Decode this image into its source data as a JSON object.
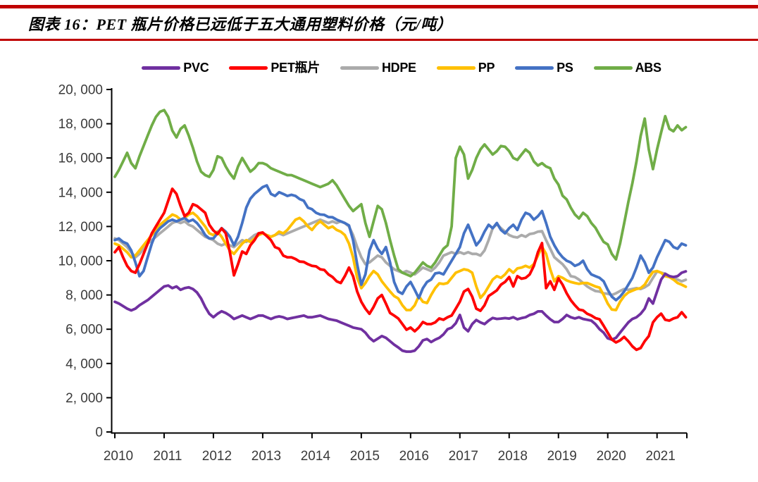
{
  "header": {
    "title": "图表 16：PET 瓶片价格已远低于五大通用塑料价格（元/吨）"
  },
  "colors": {
    "accent_rule": "#C00000",
    "axis": "#000000",
    "tick_label": "#3a3a3a",
    "background": "#ffffff"
  },
  "chart_data": {
    "type": "line",
    "title": "PET 瓶片价格已远低于五大通用塑料价格",
    "unit": "元/吨",
    "xlabel": "",
    "ylabel": "元/吨",
    "grid": false,
    "legend_position": "top",
    "x_start": "2010-01",
    "x_end": "2021-08",
    "x_frequency": "monthly",
    "x_tick_labels": [
      "2010",
      "2011",
      "2012",
      "2013",
      "2014",
      "2015",
      "2016",
      "2017",
      "2018",
      "2019",
      "2020",
      "2021"
    ],
    "ylim": [
      0,
      20000
    ],
    "y_tick_step": 2000,
    "y_tick_labels": [
      "0",
      "2, 000",
      "4, 000",
      "6, 000",
      "8, 000",
      "10, 000",
      "12, 000",
      "14, 000",
      "16, 000",
      "18, 000",
      "20, 000"
    ],
    "series": [
      {
        "name": "PVC",
        "color": "#7030A0",
        "values": [
          7600,
          7500,
          7350,
          7200,
          7100,
          7200,
          7400,
          7550,
          7700,
          7900,
          8100,
          8300,
          8500,
          8550,
          8400,
          8500,
          8300,
          8400,
          8450,
          8350,
          8150,
          7800,
          7300,
          6900,
          6700,
          6900,
          7050,
          6950,
          6800,
          6600,
          6700,
          6800,
          6700,
          6600,
          6700,
          6800,
          6800,
          6700,
          6600,
          6700,
          6750,
          6700,
          6600,
          6650,
          6700,
          6750,
          6800,
          6700,
          6700,
          6750,
          6800,
          6700,
          6600,
          6550,
          6500,
          6400,
          6300,
          6200,
          6100,
          6050,
          6000,
          5800,
          5500,
          5300,
          5450,
          5600,
          5500,
          5300,
          5100,
          4940,
          4750,
          4690,
          4690,
          4750,
          5000,
          5350,
          5430,
          5250,
          5390,
          5500,
          5700,
          6000,
          6090,
          6350,
          6830,
          6100,
          5880,
          6300,
          6540,
          6400,
          6300,
          6500,
          6660,
          6600,
          6620,
          6650,
          6620,
          6700,
          6580,
          6650,
          6700,
          6830,
          6900,
          7040,
          7040,
          6800,
          6580,
          6420,
          6420,
          6600,
          6830,
          6700,
          6630,
          6700,
          6600,
          6550,
          6500,
          6300,
          6000,
          5800,
          5470,
          5390,
          5500,
          5800,
          6100,
          6400,
          6600,
          6700,
          6900,
          7200,
          7800,
          7500,
          8200,
          8900,
          9240,
          9100,
          9050,
          9100,
          9300,
          9380
        ]
      },
      {
        "name": "PET瓶片",
        "color": "#FF0000",
        "values": [
          10500,
          10800,
          10200,
          9700,
          9400,
          9300,
          9800,
          10400,
          11000,
          11600,
          12000,
          12400,
          12800,
          13500,
          14200,
          13900,
          13200,
          12600,
          12800,
          13300,
          13200,
          13000,
          12800,
          12100,
          11770,
          11560,
          11890,
          11600,
          10500,
          9150,
          9800,
          10540,
          10400,
          10900,
          11200,
          11600,
          11650,
          11440,
          11200,
          10800,
          10700,
          10300,
          10200,
          10200,
          10100,
          9950,
          9930,
          9800,
          9700,
          9670,
          9500,
          9460,
          9200,
          9050,
          8800,
          8700,
          9100,
          9600,
          9100,
          8200,
          7600,
          7200,
          6900,
          7300,
          7800,
          8000,
          7500,
          6950,
          6800,
          6630,
          6300,
          5970,
          6100,
          5880,
          6100,
          6420,
          6300,
          6300,
          6400,
          6630,
          6550,
          6700,
          6800,
          7200,
          7610,
          8200,
          8350,
          7900,
          7200,
          7080,
          7400,
          7940,
          8100,
          8270,
          8600,
          8760,
          9050,
          8500,
          9100,
          8950,
          9000,
          9200,
          9700,
          10500,
          11030,
          8400,
          8800,
          8300,
          8970,
          8600,
          8100,
          7700,
          7400,
          7150,
          7100,
          6900,
          6800,
          6650,
          6580,
          6200,
          5800,
          5400,
          5230,
          5350,
          5550,
          5300,
          5000,
          4800,
          4900,
          5300,
          5600,
          6400,
          6700,
          6910,
          6550,
          6500,
          6630,
          6700,
          6990,
          6700
        ]
      },
      {
        "name": "HDPE",
        "color": "#ABABAB",
        "values": [
          11300,
          11200,
          11000,
          10800,
          10500,
          10200,
          10400,
          10700,
          11000,
          11200,
          11400,
          11600,
          11800,
          12000,
          12200,
          12300,
          12200,
          12300,
          12100,
          12000,
          11800,
          11600,
          11400,
          11300,
          11200,
          11000,
          10900,
          11000,
          10900,
          10800,
          11000,
          11200,
          11100,
          11300,
          11500,
          11600,
          11600,
          11500,
          11400,
          11500,
          11600,
          11500,
          11600,
          11700,
          11800,
          11900,
          12000,
          12100,
          12200,
          12300,
          12400,
          12300,
          12200,
          12300,
          12200,
          12300,
          12200,
          12000,
          11500,
          10800,
          10200,
          9800,
          9900,
          10100,
          10300,
          10200,
          9900,
          9700,
          9500,
          9400,
          9300,
          9400,
          9300,
          9200,
          9400,
          9600,
          9500,
          9400,
          9600,
          9900,
          10300,
          10400,
          10500,
          10400,
          10500,
          10400,
          10500,
          10400,
          10400,
          10300,
          10600,
          11200,
          11900,
          12140,
          11900,
          11700,
          11500,
          11400,
          11360,
          11500,
          11400,
          11560,
          11600,
          11700,
          11730,
          11200,
          10700,
          10200,
          10000,
          9800,
          9500,
          9100,
          9050,
          8900,
          8700,
          8500,
          8350,
          8230,
          8200,
          8100,
          8070,
          8000,
          8100,
          8230,
          8350,
          8300,
          8350,
          8400,
          8350,
          8450,
          8600,
          9000,
          9380,
          9300,
          9240,
          9100,
          9000,
          8900,
          8800,
          8890
        ]
      },
      {
        "name": "PP",
        "color": "#FFC000",
        "values": [
          11000,
          10900,
          10700,
          10500,
          10200,
          10300,
          10600,
          10900,
          11200,
          11500,
          11800,
          12100,
          12300,
          12500,
          12700,
          12600,
          12400,
          12500,
          12700,
          12800,
          12600,
          12300,
          12000,
          11600,
          11500,
          11700,
          11400,
          11000,
          10600,
          10400,
          10700,
          11000,
          11200,
          11100,
          11300,
          11500,
          11600,
          11500,
          11400,
          11500,
          11700,
          11600,
          11800,
          12100,
          12400,
          12500,
          12300,
          12000,
          11800,
          12100,
          12300,
          12100,
          11900,
          12000,
          11800,
          11700,
          11500,
          11000,
          10200,
          9000,
          8400,
          8700,
          9100,
          9400,
          9200,
          8800,
          8500,
          8200,
          7940,
          7800,
          7400,
          7120,
          7120,
          7400,
          7940,
          7600,
          7530,
          8000,
          8400,
          8680,
          8640,
          8700,
          9000,
          9300,
          9400,
          9500,
          9450,
          9300,
          8500,
          7830,
          8100,
          8500,
          8900,
          9100,
          9000,
          9200,
          9500,
          9300,
          9550,
          9600,
          9700,
          9600,
          9800,
          10300,
          10820,
          10400,
          9500,
          8800,
          9100,
          9000,
          8850,
          8760,
          8700,
          8650,
          8700,
          8700,
          8600,
          8500,
          8430,
          8000,
          7500,
          7150,
          7120,
          7600,
          7940,
          8150,
          8250,
          8350,
          8400,
          8600,
          9000,
          9350,
          9400,
          9300,
          9100,
          9050,
          8900,
          8700,
          8600,
          8480
        ]
      },
      {
        "name": "PS",
        "color": "#4472C4",
        "values": [
          11200,
          11300,
          11100,
          11000,
          10600,
          9900,
          9100,
          9400,
          10200,
          11000,
          11600,
          11900,
          12100,
          12300,
          12400,
          12300,
          12400,
          12500,
          12300,
          12400,
          12200,
          11900,
          11500,
          11300,
          11300,
          11600,
          11900,
          11700,
          11400,
          10900,
          11400,
          12200,
          13100,
          13620,
          13900,
          14100,
          14300,
          14400,
          13900,
          13780,
          14000,
          13900,
          13780,
          13850,
          13780,
          13600,
          13500,
          13100,
          13010,
          12800,
          12700,
          12680,
          12550,
          12540,
          12400,
          12300,
          12200,
          12060,
          11200,
          9800,
          8600,
          9200,
          10600,
          11200,
          10700,
          10400,
          10800,
          9900,
          8760,
          8200,
          8070,
          8500,
          8760,
          8300,
          7820,
          8400,
          8760,
          8900,
          9260,
          9300,
          9200,
          9600,
          10000,
          10400,
          10800,
          11600,
          12100,
          11500,
          10900,
          11200,
          11700,
          12100,
          11900,
          12200,
          11800,
          11600,
          11900,
          12100,
          11800,
          12400,
          12800,
          12700,
          12400,
          12600,
          12900,
          12200,
          11400,
          10900,
          10500,
          10200,
          10000,
          9900,
          9700,
          9800,
          10000,
          9500,
          9200,
          9100,
          9000,
          8800,
          8300,
          7900,
          7700,
          7900,
          8200,
          8600,
          9000,
          9600,
          10300,
          9900,
          9300,
          9600,
          10200,
          10700,
          11200,
          11100,
          10800,
          10700,
          11000,
          10900
        ]
      },
      {
        "name": "ABS",
        "color": "#70AD47",
        "values": [
          14900,
          15300,
          15800,
          16300,
          15700,
          15400,
          16100,
          16700,
          17300,
          17900,
          18400,
          18700,
          18800,
          18400,
          17600,
          17200,
          17700,
          17900,
          17300,
          16600,
          15800,
          15200,
          15000,
          14900,
          15300,
          16100,
          16000,
          15500,
          15100,
          14800,
          15500,
          16000,
          15600,
          15200,
          15400,
          15700,
          15700,
          15600,
          15400,
          15300,
          15200,
          15100,
          15000,
          15000,
          14900,
          14800,
          14700,
          14600,
          14500,
          14400,
          14300,
          14400,
          14500,
          14700,
          14400,
          14000,
          13600,
          13200,
          12900,
          13100,
          13300,
          12200,
          11400,
          12300,
          13200,
          13000,
          12200,
          11200,
          10300,
          9500,
          9300,
          9200,
          9100,
          9300,
          9600,
          9900,
          9700,
          9600,
          9900,
          10300,
          10700,
          10900,
          12000,
          16000,
          16660,
          16200,
          14800,
          15300,
          16000,
          16500,
          16790,
          16500,
          16200,
          16400,
          16700,
          16660,
          16400,
          16000,
          15890,
          16200,
          16500,
          16300,
          15800,
          15560,
          15700,
          15500,
          15400,
          14800,
          14450,
          13800,
          13580,
          13100,
          12700,
          12470,
          12800,
          12600,
          12200,
          11930,
          11500,
          11100,
          10950,
          10400,
          10080,
          11000,
          12180,
          13420,
          14530,
          15800,
          17280,
          18300,
          16500,
          15350,
          16500,
          17490,
          18440,
          17700,
          17560,
          17900,
          17620,
          17800
        ]
      }
    ]
  }
}
